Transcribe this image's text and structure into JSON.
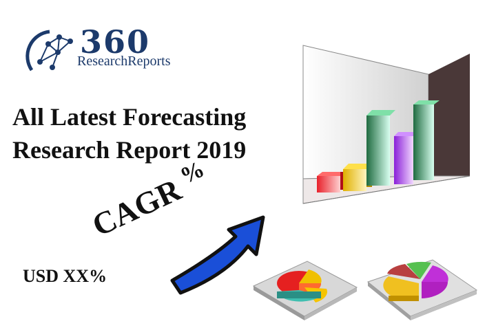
{
  "brand": {
    "name_number": "360",
    "name_text": "ResearchReports"
  },
  "headline": {
    "line1": "All Latest Forecasting",
    "line2": "Research Report 2019"
  },
  "cagr_label": "CAGR",
  "cagr_symbol": "%",
  "usd_label": "USD XX%",
  "icons": [
    "network-globe-logo-icon",
    "3d-bar-chart-icon",
    "blue-arrow-icon",
    "pie-chart-icon",
    "pie-chart-icon"
  ],
  "colors": {
    "brand": "#1c3a6b",
    "arrow": "#1a4fd8"
  }
}
